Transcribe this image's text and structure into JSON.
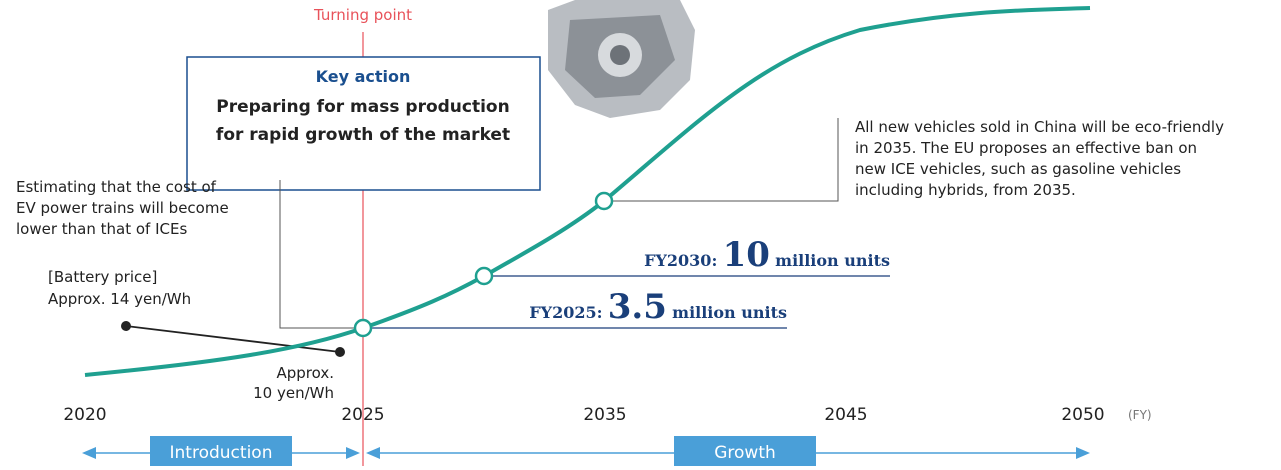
{
  "turning_point": "Turning point",
  "key_action": {
    "heading": "Key action",
    "lines": [
      "Preparing for mass production",
      "for rapid growth of the market"
    ]
  },
  "notes": {
    "cost": [
      "Estimating that the cost of",
      "EV power trains will become",
      "lower than that of ICEs"
    ],
    "battery_label": "[Battery price]",
    "battery_start": "Approx. 14 yen/Wh",
    "battery_end": [
      "Approx.",
      "10 yen/Wh"
    ],
    "regulation": [
      "All new vehicles sold in China will be eco-friendly",
      "in 2035. The EU proposes an effective ban on",
      "new ICE vehicles, such as gasoline vehicles",
      "including hybrids, from 2035."
    ]
  },
  "milestones": [
    {
      "label": "FY2030:",
      "number": "10",
      "unit": "million units"
    },
    {
      "label": "FY2025:",
      "number": "3.5",
      "unit": "million units"
    }
  ],
  "axis": {
    "ticks": [
      "2020",
      "2025",
      "2035",
      "2045",
      "2050"
    ],
    "unit": "(FY)"
  },
  "phases": [
    "Introduction",
    "Growth"
  ]
}
